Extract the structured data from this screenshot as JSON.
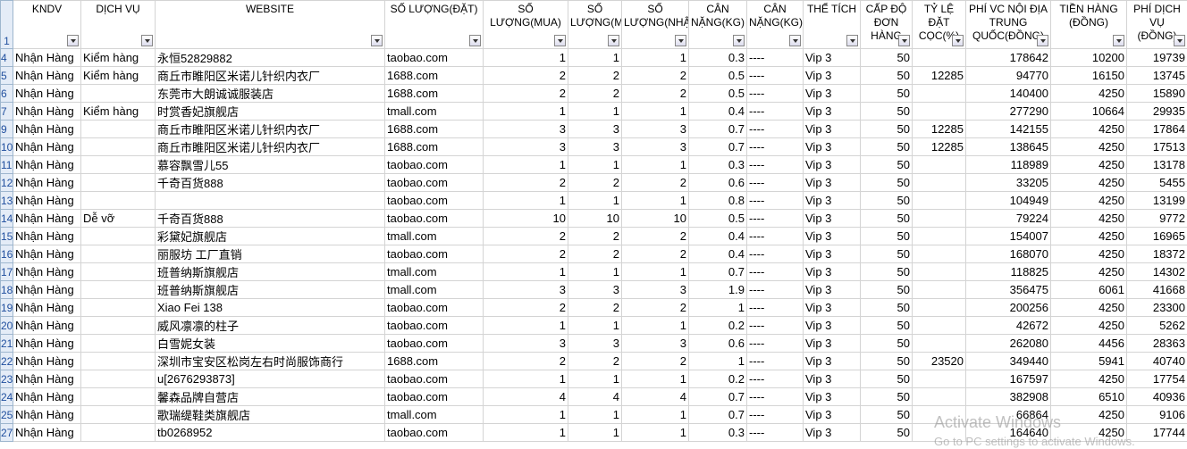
{
  "header_row": {
    "num": 1,
    "cells": [
      "KNDV",
      "DỊCH VỤ",
      "WEBSITE",
      "SỐ LƯỢNG(ĐẶT)",
      "SỐ LƯỢNG(MUA)",
      "SỐ LƯỢNG(MUA)",
      "SỐ LƯỢNG(NHẬN)",
      "CÂN NẶNG(KG)",
      "CÂN NẶNG(KG)",
      "THỂ TÍCH",
      "CẤP ĐỘ ĐƠN HÀNG",
      "TỶ LỆ ĐẶT CỌC(%)",
      "PHÍ VC NỘI ĐỊA TRUNG QUỐC(ĐỒNG)",
      "TIỀN HÀNG (ĐỒNG)",
      "PHÍ DỊCH VỤ (ĐỒNG)"
    ]
  },
  "rows": [
    {
      "num": 4,
      "cells": [
        "Nhận Hàng",
        "Kiểm hàng",
        "永恒52829882",
        "taobao.com",
        1,
        1,
        1,
        0.3,
        "----",
        "Vip 3",
        50,
        null,
        178642,
        10200,
        19739
      ]
    },
    {
      "num": 5,
      "cells": [
        "Nhận Hàng",
        "Kiểm hàng",
        "商丘市睢阳区米诺儿针织内衣厂",
        "1688.com",
        2,
        2,
        2,
        0.5,
        "----",
        "Vip 3",
        50,
        12285,
        94770,
        16150,
        13745
      ]
    },
    {
      "num": 6,
      "cells": [
        "Nhận Hàng",
        null,
        "东莞市大朗诚诚服装店",
        "1688.com",
        2,
        2,
        2,
        0.5,
        "----",
        "Vip 3",
        50,
        null,
        140400,
        4250,
        15890
      ]
    },
    {
      "num": 7,
      "cells": [
        "Nhận Hàng",
        "Kiểm hàng",
        "时赏香妃旗舰店",
        "tmall.com",
        1,
        1,
        1,
        0.4,
        "----",
        "Vip 3",
        50,
        null,
        277290,
        10664,
        29935
      ]
    },
    {
      "num": 9,
      "cells": [
        "Nhận Hàng",
        null,
        "商丘市睢阳区米诺儿针织内衣厂",
        "1688.com",
        3,
        3,
        3,
        0.7,
        "----",
        "Vip 3",
        50,
        12285,
        142155,
        4250,
        17864
      ]
    },
    {
      "num": 10,
      "cells": [
        "Nhận Hàng",
        null,
        "商丘市睢阳区米诺儿针织内衣厂",
        "1688.com",
        3,
        3,
        3,
        0.7,
        "----",
        "Vip 3",
        50,
        12285,
        138645,
        4250,
        17513
      ]
    },
    {
      "num": 11,
      "cells": [
        "Nhận Hàng",
        null,
        "慕容飘雪儿55",
        "taobao.com",
        1,
        1,
        1,
        0.3,
        "----",
        "Vip 3",
        50,
        null,
        118989,
        4250,
        13178
      ]
    },
    {
      "num": 12,
      "cells": [
        "Nhận Hàng",
        null,
        "千奇百货888",
        "taobao.com",
        2,
        2,
        2,
        0.6,
        "----",
        "Vip 3",
        50,
        null,
        33205,
        4250,
        5455
      ]
    },
    {
      "num": 13,
      "cells": [
        "Nhận Hàng",
        null,
        null,
        "taobao.com",
        1,
        1,
        1,
        0.8,
        "----",
        "Vip 3",
        50,
        null,
        104949,
        4250,
        13199
      ]
    },
    {
      "num": 14,
      "cells": [
        "Nhận Hàng",
        "Dễ vỡ",
        "千奇百货888",
        "taobao.com",
        10,
        10,
        10,
        0.5,
        "----",
        "Vip 3",
        50,
        null,
        79224,
        4250,
        9772
      ]
    },
    {
      "num": 15,
      "cells": [
        "Nhận Hàng",
        null,
        "彩黛妃旗舰店",
        "tmall.com",
        2,
        2,
        2,
        0.4,
        "----",
        "Vip 3",
        50,
        null,
        154007,
        4250,
        16965
      ]
    },
    {
      "num": 16,
      "cells": [
        "Nhận Hàng",
        null,
        "丽服坊 工厂直销",
        "taobao.com",
        2,
        2,
        2,
        0.4,
        "----",
        "Vip 3",
        50,
        null,
        168070,
        4250,
        18372
      ]
    },
    {
      "num": 17,
      "cells": [
        "Nhận Hàng",
        null,
        "班普纳斯旗舰店",
        "tmall.com",
        1,
        1,
        1,
        0.7,
        "----",
        "Vip 3",
        50,
        null,
        118825,
        4250,
        14302
      ]
    },
    {
      "num": 18,
      "cells": [
        "Nhận Hàng",
        null,
        "班普纳斯旗舰店",
        "tmall.com",
        3,
        3,
        3,
        1.9,
        "----",
        "Vip 3",
        50,
        null,
        356475,
        6061,
        41668
      ]
    },
    {
      "num": 19,
      "cells": [
        "Nhận Hàng",
        null,
        "Xiao Fei 138",
        "taobao.com",
        2,
        2,
        2,
        1,
        "----",
        "Vip 3",
        50,
        null,
        200256,
        4250,
        23300
      ]
    },
    {
      "num": 20,
      "cells": [
        "Nhận Hàng",
        null,
        "威风凛凛的柱子",
        "taobao.com",
        1,
        1,
        1,
        0.2,
        "----",
        "Vip 3",
        50,
        null,
        42672,
        4250,
        5262
      ]
    },
    {
      "num": 21,
      "cells": [
        "Nhận Hàng",
        null,
        "白雪妮女装",
        "taobao.com",
        3,
        3,
        3,
        0.6,
        "----",
        "Vip 3",
        50,
        null,
        262080,
        4456,
        28363
      ]
    },
    {
      "num": 22,
      "cells": [
        "Nhận Hàng",
        null,
        "深圳市宝安区松岗左右时尚服饰商行",
        "1688.com",
        2,
        2,
        2,
        1,
        "----",
        "Vip 3",
        50,
        23520,
        349440,
        5941,
        40740
      ]
    },
    {
      "num": 23,
      "cells": [
        "Nhận Hàng",
        null,
        "u[2676293873]",
        "taobao.com",
        1,
        1,
        1,
        0.2,
        "----",
        "Vip 3",
        50,
        null,
        167597,
        4250,
        17754
      ]
    },
    {
      "num": 24,
      "cells": [
        "Nhận Hàng",
        null,
        "馨森品牌自营店",
        "taobao.com",
        4,
        4,
        4,
        0.7,
        "----",
        "Vip 3",
        50,
        null,
        382908,
        6510,
        40936
      ]
    },
    {
      "num": 25,
      "cells": [
        "Nhận Hàng",
        null,
        "歌瑞缇鞋类旗舰店",
        "tmall.com",
        1,
        1,
        1,
        0.7,
        "----",
        "Vip 3",
        50,
        null,
        66864,
        4250,
        9106
      ]
    },
    {
      "num": 27,
      "cells": [
        "Nhận Hàng",
        null,
        "tb0268952",
        "taobao.com",
        1,
        1,
        1,
        0.3,
        "----",
        "Vip 3",
        50,
        null,
        164640,
        4250,
        17744
      ]
    }
  ],
  "watermark": {
    "title": "Activate Windows",
    "subtitle": "Go to PC settings to activate Windows."
  }
}
